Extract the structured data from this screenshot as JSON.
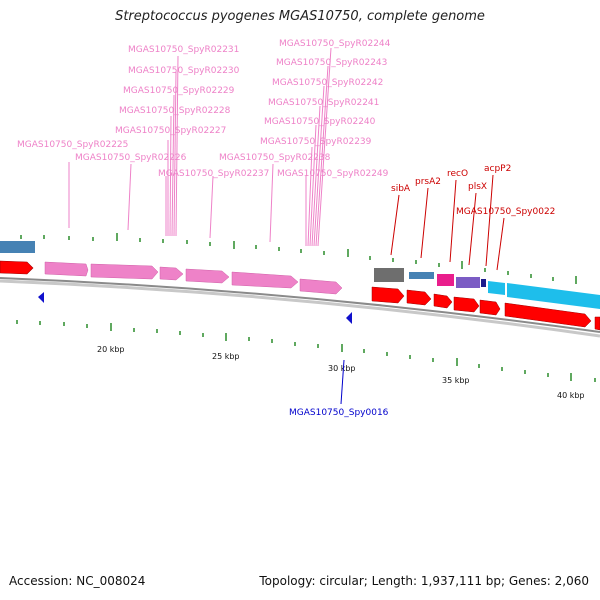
{
  "title": "Streptococcus pyogenes MGAS10750, complete genome",
  "footer": {
    "accession": "Accession: NC_008024",
    "summary": "Topology: circular; Length: 1,937,111 bp; Genes: 2,060"
  },
  "colors": {
    "rrna": "#ee82c8",
    "cds": "#ff0000",
    "cds_dark": "#d40000",
    "cds_light": "#1ebeeb",
    "steel": "#4682b4",
    "gray": "#6e6e6e",
    "magenta": "#e91e8c",
    "purple": "#7b5cc4",
    "navy": "#1c1c8c",
    "tick": "#2a8c2a",
    "blue_label": "#0000cc",
    "red_label": "#cc0000"
  },
  "scale_labels": [
    "20 kbp",
    "25 kbp",
    "30 kbp",
    "35 kbp",
    "40 kbp"
  ],
  "top_labels": {
    "pink": [
      "MGAS10750_SpyR02231",
      "MGAS10750_SpyR02230",
      "MGAS10750_SpyR02229",
      "MGAS10750_SpyR02228",
      "MGAS10750_SpyR02227",
      "MGAS10750_SpyR02225",
      "MGAS10750_SpyR02226",
      "MGAS10750_SpyR02237",
      "MGAS10750_SpyR02244",
      "MGAS10750_SpyR02243",
      "MGAS10750_SpyR02242",
      "MGAS10750_SpyR02241",
      "MGAS10750_SpyR02240",
      "MGAS10750_SpyR02239",
      "MGAS10750_SpyR02238",
      "MGAS10750_SpyR02249"
    ],
    "red": [
      "sibA",
      "prsA2",
      "recO",
      "plsX",
      "acpP2",
      "MGAS10750_Spy0022"
    ]
  },
  "bottom_labels": {
    "blue": [
      "MGAS10750_Spy0016"
    ]
  }
}
